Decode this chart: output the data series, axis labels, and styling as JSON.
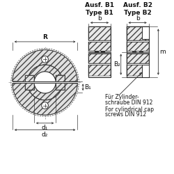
{
  "bg_color": "#ffffff",
  "line_color": "#2a2a2a",
  "hatch_color": "#444444",
  "text_color": "#111111",
  "title_B1": "Ausf. B1\nType B1",
  "title_B2": "Ausf. B2\nType B2",
  "label_R": "R",
  "label_d1": "d₁",
  "label_d2": "d₂",
  "label_B1": "B₁",
  "label_B2": "B₂",
  "label_b": "b",
  "label_m": "m",
  "note_line1": "Für Zylinder-",
  "note_line2": "schraube DIN 912",
  "note_line3": "For cylindrical cap",
  "note_line4": "screws DIN 912",
  "font_size_small": 5.5,
  "font_size_label": 6.5,
  "font_size_title": 6.5
}
